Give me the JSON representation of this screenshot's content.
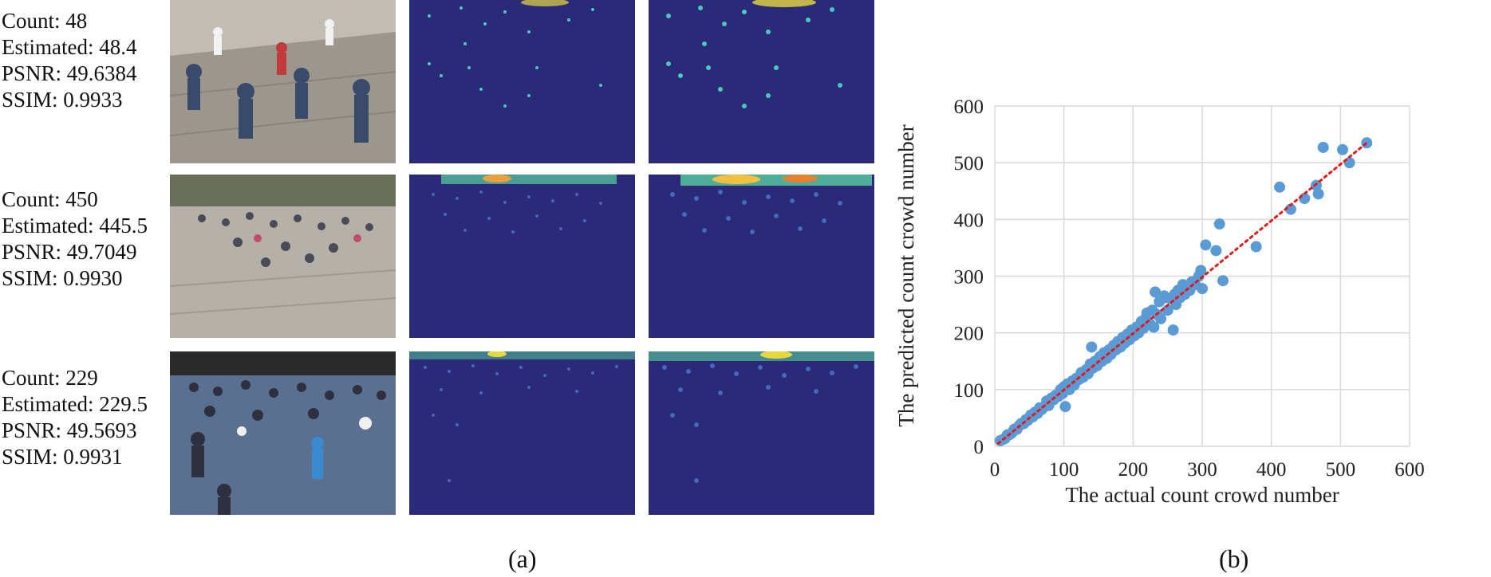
{
  "panel_a": {
    "label": "(a)",
    "rows": [
      {
        "count": "Count: 48",
        "estimated": "Estimated: 48.4",
        "psnr": "PSNR: 49.6384",
        "ssim": "SSIM: 0.9933"
      },
      {
        "count": "Count: 450",
        "estimated": "Estimated: 445.5",
        "psnr": "PSNR: 49.7049",
        "ssim": "SSIM: 0.9930"
      },
      {
        "count": "Count: 229",
        "estimated": "Estimated: 229.5",
        "psnr": "PSNR: 49.5693",
        "ssim": "SSIM: 0.9931"
      }
    ]
  },
  "panel_b": {
    "label": "(b)"
  },
  "colors": {
    "density_bg": "#2a2a78",
    "points": "#5b9bd5",
    "trendline": "#e0191b",
    "grid": "#d9d9d9"
  },
  "chart_data": {
    "type": "scatter",
    "title": "",
    "xlabel": "The actual count crowd number",
    "ylabel": "The predicted count crowd number",
    "xlim": [
      0,
      600
    ],
    "ylim": [
      0,
      600
    ],
    "xticks": [
      0,
      100,
      200,
      300,
      400,
      500,
      600
    ],
    "yticks": [
      0,
      100,
      200,
      300,
      400,
      500,
      600
    ],
    "grid": true,
    "trendline": {
      "style": "dotted",
      "from": [
        5,
        5
      ],
      "to": [
        538,
        535
      ]
    },
    "points": [
      [
        8,
        10
      ],
      [
        12,
        12
      ],
      [
        15,
        14
      ],
      [
        18,
        20
      ],
      [
        22,
        21
      ],
      [
        25,
        24
      ],
      [
        28,
        30
      ],
      [
        32,
        30
      ],
      [
        35,
        36
      ],
      [
        38,
        40
      ],
      [
        42,
        40
      ],
      [
        45,
        47
      ],
      [
        48,
        46
      ],
      [
        52,
        55
      ],
      [
        55,
        52
      ],
      [
        58,
        60
      ],
      [
        62,
        58
      ],
      [
        65,
        68
      ],
      [
        68,
        65
      ],
      [
        72,
        70
      ],
      [
        75,
        80
      ],
      [
        78,
        72
      ],
      [
        82,
        85
      ],
      [
        85,
        82
      ],
      [
        88,
        90
      ],
      [
        92,
        88
      ],
      [
        95,
        100
      ],
      [
        98,
        93
      ],
      [
        100,
        105
      ],
      [
        102,
        70
      ],
      [
        105,
        110
      ],
      [
        108,
        100
      ],
      [
        112,
        115
      ],
      [
        115,
        108
      ],
      [
        118,
        120
      ],
      [
        122,
        118
      ],
      [
        125,
        130
      ],
      [
        128,
        122
      ],
      [
        132,
        135
      ],
      [
        135,
        128
      ],
      [
        138,
        145
      ],
      [
        140,
        175
      ],
      [
        142,
        138
      ],
      [
        145,
        150
      ],
      [
        148,
        142
      ],
      [
        152,
        158
      ],
      [
        155,
        150
      ],
      [
        158,
        165
      ],
      [
        162,
        155
      ],
      [
        165,
        170
      ],
      [
        168,
        162
      ],
      [
        172,
        178
      ],
      [
        175,
        170
      ],
      [
        178,
        185
      ],
      [
        182,
        175
      ],
      [
        185,
        192
      ],
      [
        188,
        182
      ],
      [
        192,
        198
      ],
      [
        195,
        188
      ],
      [
        198,
        205
      ],
      [
        202,
        195
      ],
      [
        205,
        210
      ],
      [
        208,
        200
      ],
      [
        212,
        220
      ],
      [
        215,
        208
      ],
      [
        218,
        225
      ],
      [
        220,
        235
      ],
      [
        225,
        215
      ],
      [
        228,
        240
      ],
      [
        230,
        210
      ],
      [
        232,
        272
      ],
      [
        235,
        232
      ],
      [
        238,
        255
      ],
      [
        240,
        225
      ],
      [
        245,
        265
      ],
      [
        248,
        262
      ],
      [
        250,
        240
      ],
      [
        255,
        260
      ],
      [
        258,
        205
      ],
      [
        260,
        268
      ],
      [
        262,
        250
      ],
      [
        265,
        275
      ],
      [
        268,
        262
      ],
      [
        272,
        285
      ],
      [
        275,
        268
      ],
      [
        278,
        280
      ],
      [
        282,
        275
      ],
      [
        285,
        290
      ],
      [
        290,
        285
      ],
      [
        295,
        300
      ],
      [
        298,
        310
      ],
      [
        300,
        278
      ],
      [
        305,
        355
      ],
      [
        320,
        345
      ],
      [
        325,
        392
      ],
      [
        330,
        292
      ],
      [
        378,
        352
      ],
      [
        412,
        457
      ],
      [
        428,
        418
      ],
      [
        448,
        437
      ],
      [
        465,
        460
      ],
      [
        468,
        445
      ],
      [
        475,
        527
      ],
      [
        503,
        523
      ],
      [
        513,
        500
      ],
      [
        538,
        535
      ]
    ]
  }
}
